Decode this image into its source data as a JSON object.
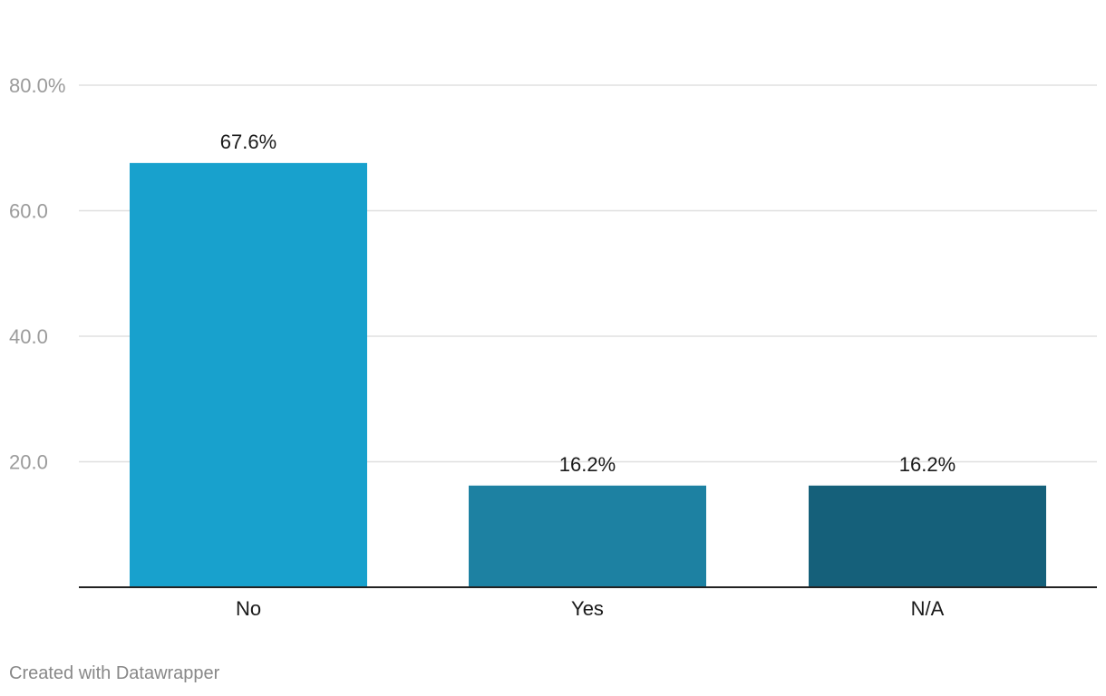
{
  "chart_data": {
    "type": "bar",
    "categories": [
      "No",
      "Yes",
      "N/A"
    ],
    "values": [
      67.6,
      16.2,
      16.2
    ],
    "value_labels": [
      "67.6%",
      "16.2%",
      "16.2%"
    ],
    "colors": [
      "#18a1cd",
      "#1d81a2",
      "#15607a"
    ],
    "y_ticks": [
      20,
      40,
      60,
      80
    ],
    "y_tick_labels": [
      "20.0",
      "40.0",
      "60.0",
      "80.0%"
    ],
    "ylim": [
      0,
      80
    ],
    "grid": true,
    "title": "",
    "xlabel": "",
    "ylabel": ""
  },
  "footer": {
    "credit": "Created with Datawrapper"
  }
}
